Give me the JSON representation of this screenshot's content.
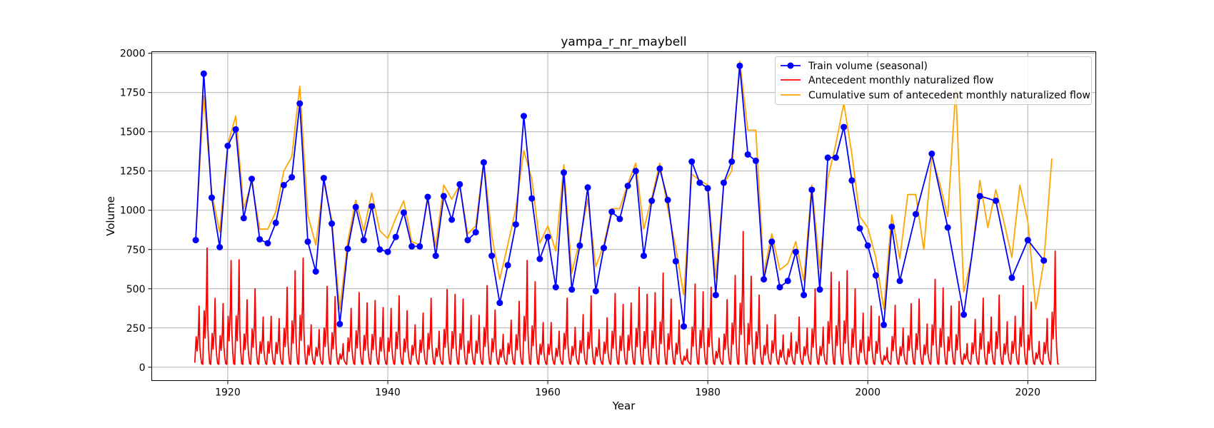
{
  "chart_data": {
    "type": "line",
    "title": "yampa_r_nr_maybell",
    "xlabel": "Year",
    "ylabel": "Volume",
    "xlim": [
      1910.5,
      2028.5
    ],
    "ylim": [
      -85,
      2010
    ],
    "x_ticks": [
      1920,
      1940,
      1960,
      1980,
      2000,
      2020
    ],
    "y_ticks": [
      0,
      250,
      500,
      750,
      1000,
      1250,
      1500,
      1750,
      2000
    ],
    "grid": true,
    "legend_position": "upper right",
    "colors": {
      "train": "#0000ff",
      "monthly": "#ff0000",
      "cumulative": "#ffa500",
      "grid": "#b0b0b0"
    },
    "series": [
      {
        "name": "Train volume (seasonal)",
        "style": "line-with-markers",
        "x": [
          1916,
          1917,
          1918,
          1919,
          1920,
          1921,
          1922,
          1923,
          1924,
          1925,
          1926,
          1927,
          1928,
          1929,
          1930,
          1931,
          1932,
          1933,
          1934,
          1935,
          1936,
          1937,
          1938,
          1939,
          1940,
          1941,
          1942,
          1943,
          1944,
          1945,
          1946,
          1947,
          1948,
          1949,
          1950,
          1951,
          1952,
          1953,
          1954,
          1955,
          1956,
          1957,
          1958,
          1959,
          1960,
          1961,
          1962,
          1963,
          1964,
          1965,
          1966,
          1967,
          1968,
          1969,
          1970,
          1971,
          1972,
          1973,
          1974,
          1975,
          1976,
          1977,
          1978,
          1979,
          1980,
          1981,
          1982,
          1983,
          1984,
          1985,
          1986,
          1987,
          1988,
          1989,
          1990,
          1991,
          1992,
          1993,
          1994,
          1995,
          1996,
          1997,
          1998,
          1999,
          2000,
          2001,
          2002,
          2003,
          2004,
          2006,
          2008,
          2010,
          2012,
          2014,
          2016,
          2018,
          2020,
          2022
        ],
        "y": [
          810,
          1870,
          1080,
          765,
          1410,
          1515,
          950,
          1200,
          815,
          790,
          920,
          1160,
          1210,
          1680,
          800,
          610,
          1205,
          915,
          275,
          755,
          1020,
          810,
          1025,
          750,
          735,
          830,
          985,
          770,
          770,
          1085,
          710,
          1090,
          940,
          1165,
          810,
          860,
          1305,
          710,
          410,
          650,
          910,
          1600,
          1075,
          690,
          830,
          510,
          1240,
          495,
          775,
          1145,
          485,
          760,
          990,
          945,
          1155,
          1250,
          710,
          1060,
          1265,
          1065,
          675,
          260,
          1310,
          1175,
          1140,
          460,
          1175,
          1310,
          1920,
          1355,
          1315,
          560,
          800,
          510,
          550,
          735,
          460,
          1130,
          495,
          1335,
          1335,
          1530,
          1190,
          885,
          775,
          585,
          270,
          895,
          550,
          975,
          1360,
          890,
          335,
          1090,
          1060,
          570,
          810,
          680
        ]
      },
      {
        "name": "Antecedent monthly naturalized flow",
        "style": "line",
        "peak_month_offset": 0.42,
        "base_flow": 18,
        "peaks": [
          [
            1916,
            390
          ],
          [
            1917,
            760
          ],
          [
            1918,
            440
          ],
          [
            1919,
            405
          ],
          [
            1920,
            680
          ],
          [
            1921,
            685
          ],
          [
            1922,
            430
          ],
          [
            1923,
            500
          ],
          [
            1924,
            320
          ],
          [
            1925,
            325
          ],
          [
            1926,
            310
          ],
          [
            1927,
            510
          ],
          [
            1928,
            615
          ],
          [
            1929,
            695
          ],
          [
            1930,
            270
          ],
          [
            1931,
            240
          ],
          [
            1932,
            515
          ],
          [
            1933,
            450
          ],
          [
            1934,
            150
          ],
          [
            1935,
            375
          ],
          [
            1936,
            475
          ],
          [
            1937,
            410
          ],
          [
            1938,
            425
          ],
          [
            1939,
            380
          ],
          [
            1940,
            375
          ],
          [
            1941,
            455
          ],
          [
            1942,
            360
          ],
          [
            1943,
            270
          ],
          [
            1944,
            345
          ],
          [
            1945,
            440
          ],
          [
            1946,
            230
          ],
          [
            1947,
            495
          ],
          [
            1948,
            465
          ],
          [
            1949,
            435
          ],
          [
            1950,
            330
          ],
          [
            1951,
            330
          ],
          [
            1952,
            520
          ],
          [
            1953,
            365
          ],
          [
            1954,
            210
          ],
          [
            1955,
            300
          ],
          [
            1956,
            420
          ],
          [
            1957,
            680
          ],
          [
            1958,
            545
          ],
          [
            1959,
            285
          ],
          [
            1960,
            285
          ],
          [
            1961,
            230
          ],
          [
            1962,
            440
          ],
          [
            1963,
            255
          ],
          [
            1964,
            335
          ],
          [
            1965,
            455
          ],
          [
            1966,
            240
          ],
          [
            1967,
            315
          ],
          [
            1968,
            470
          ],
          [
            1969,
            400
          ],
          [
            1970,
            410
          ],
          [
            1971,
            510
          ],
          [
            1972,
            465
          ],
          [
            1973,
            475
          ],
          [
            1974,
            600
          ],
          [
            1975,
            435
          ],
          [
            1976,
            300
          ],
          [
            1977,
            115
          ],
          [
            1978,
            530
          ],
          [
            1979,
            480
          ],
          [
            1980,
            510
          ],
          [
            1981,
            185
          ],
          [
            1982,
            430
          ],
          [
            1983,
            585
          ],
          [
            1984,
            865
          ],
          [
            1985,
            580
          ],
          [
            1986,
            460
          ],
          [
            1987,
            270
          ],
          [
            1988,
            335
          ],
          [
            1989,
            205
          ],
          [
            1990,
            220
          ],
          [
            1991,
            320
          ],
          [
            1992,
            250
          ],
          [
            1993,
            500
          ],
          [
            1994,
            255
          ],
          [
            1995,
            605
          ],
          [
            1996,
            545
          ],
          [
            1997,
            615
          ],
          [
            1998,
            500
          ],
          [
            1999,
            345
          ],
          [
            2000,
            390
          ],
          [
            2001,
            325
          ],
          [
            2002,
            125
          ],
          [
            2003,
            395
          ],
          [
            2004,
            250
          ],
          [
            2005,
            405
          ],
          [
            2006,
            435
          ],
          [
            2007,
            275
          ],
          [
            2008,
            560
          ],
          [
            2009,
            505
          ],
          [
            2010,
            390
          ],
          [
            2011,
            420
          ],
          [
            2012,
            150
          ],
          [
            2013,
            305
          ],
          [
            2014,
            440
          ],
          [
            2015,
            320
          ],
          [
            2016,
            460
          ],
          [
            2017,
            290
          ],
          [
            2018,
            325
          ],
          [
            2019,
            520
          ],
          [
            2020,
            415
          ],
          [
            2021,
            165
          ],
          [
            2022,
            310
          ],
          [
            2023,
            740
          ]
        ]
      },
      {
        "name": "Cumulative sum of antecedent monthly naturalized flow",
        "style": "line",
        "x": [
          1916,
          1917,
          1918,
          1919,
          1920,
          1921,
          1922,
          1923,
          1924,
          1925,
          1926,
          1927,
          1928,
          1929,
          1930,
          1931,
          1932,
          1933,
          1934,
          1935,
          1936,
          1937,
          1938,
          1939,
          1940,
          1941,
          1942,
          1943,
          1944,
          1945,
          1946,
          1947,
          1948,
          1949,
          1950,
          1951,
          1952,
          1953,
          1954,
          1955,
          1956,
          1957,
          1958,
          1959,
          1960,
          1961,
          1962,
          1963,
          1964,
          1965,
          1966,
          1967,
          1968,
          1969,
          1970,
          1971,
          1972,
          1973,
          1974,
          1975,
          1976,
          1977,
          1978,
          1979,
          1980,
          1981,
          1982,
          1983,
          1984,
          1985,
          1986,
          1987,
          1988,
          1989,
          1990,
          1991,
          1992,
          1993,
          1994,
          1995,
          1996,
          1997,
          1998,
          1999,
          2000,
          2001,
          2002,
          2003,
          2004,
          2005,
          2006,
          2007,
          2008,
          2009,
          2010,
          2011,
          2012,
          2013,
          2014,
          2015,
          2016,
          2017,
          2018,
          2019,
          2020,
          2021,
          2022,
          2023
        ],
        "y": [
          830,
          1730,
          1110,
          860,
          1420,
          1600,
          1010,
          1180,
          880,
          880,
          990,
          1250,
          1340,
          1790,
          970,
          780,
          1180,
          940,
          370,
          800,
          1065,
          870,
          1110,
          870,
          820,
          950,
          1060,
          800,
          780,
          1065,
          770,
          1160,
          1070,
          1160,
          850,
          900,
          1320,
          840,
          560,
          780,
          1010,
          1380,
          1200,
          790,
          900,
          740,
          1290,
          600,
          810,
          1070,
          640,
          780,
          1010,
          1010,
          1170,
          1300,
          880,
          1080,
          1300,
          1010,
          760,
          460,
          1230,
          1190,
          1160,
          570,
          1170,
          1250,
          1950,
          1510,
          1510,
          600,
          850,
          620,
          660,
          800,
          550,
          1160,
          630,
          1200,
          1420,
          1680,
          1360,
          960,
          890,
          700,
          370,
          970,
          690,
          1100,
          1100,
          750,
          1350,
          1170,
          960,
          1780,
          480,
          700,
          1190,
          890,
          1130,
          930,
          700,
          1160,
          930,
          370,
          670,
          1330
        ]
      }
    ]
  }
}
